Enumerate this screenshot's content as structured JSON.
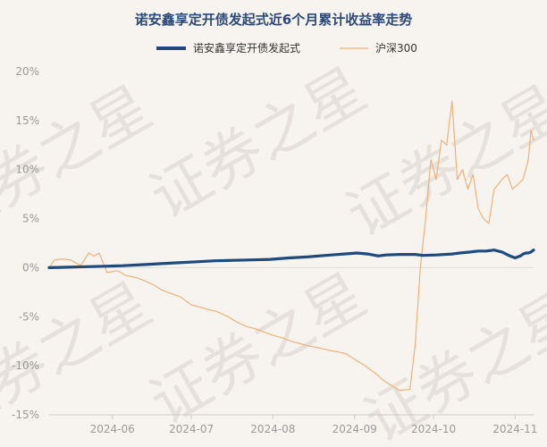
{
  "chart_data": {
    "type": "line",
    "title": "诺安鑫享定开债发起式近6个月累计收益率走势",
    "watermark": "证券之星",
    "ylim": [
      -15,
      20
    ],
    "yticks": [
      20,
      15,
      10,
      5,
      0,
      -5,
      -10,
      -15
    ],
    "ytick_labels": [
      "20%",
      "15%",
      "10%",
      "5%",
      "0%",
      "-5%",
      "-10%",
      "-15%"
    ],
    "xticks": [
      {
        "date": "2024-06-01",
        "label": "2024-06"
      },
      {
        "date": "2024-07-01",
        "label": "2024-07"
      },
      {
        "date": "2024-08-01",
        "label": "2024-08"
      },
      {
        "date": "2024-09-01",
        "label": "2024-09"
      },
      {
        "date": "2024-10-01",
        "label": "2024-10"
      },
      {
        "date": "2024-11-01",
        "label": "2024-11"
      }
    ],
    "xlim": [
      "2024-05-08",
      "2024-11-08"
    ],
    "legend_position": "top",
    "grid": false,
    "series": [
      {
        "name": "诺安鑫享定开债发起式",
        "color": "#1f4a7c",
        "points": [
          [
            "2024-05-08",
            0.0
          ],
          [
            "2024-05-15",
            0.05
          ],
          [
            "2024-05-22",
            0.1
          ],
          [
            "2024-05-29",
            0.15
          ],
          [
            "2024-06-05",
            0.2
          ],
          [
            "2024-06-12",
            0.3
          ],
          [
            "2024-06-19",
            0.4
          ],
          [
            "2024-06-26",
            0.5
          ],
          [
            "2024-07-03",
            0.6
          ],
          [
            "2024-07-10",
            0.7
          ],
          [
            "2024-07-17",
            0.75
          ],
          [
            "2024-07-24",
            0.8
          ],
          [
            "2024-07-31",
            0.85
          ],
          [
            "2024-08-07",
            1.0
          ],
          [
            "2024-08-14",
            1.1
          ],
          [
            "2024-08-21",
            1.25
          ],
          [
            "2024-08-28",
            1.4
          ],
          [
            "2024-09-02",
            1.5
          ],
          [
            "2024-09-06",
            1.4
          ],
          [
            "2024-09-10",
            1.2
          ],
          [
            "2024-09-13",
            1.3
          ],
          [
            "2024-09-18",
            1.35
          ],
          [
            "2024-09-24",
            1.35
          ],
          [
            "2024-09-27",
            1.25
          ],
          [
            "2024-10-02",
            1.3
          ],
          [
            "2024-10-08",
            1.4
          ],
          [
            "2024-10-11",
            1.5
          ],
          [
            "2024-10-15",
            1.6
          ],
          [
            "2024-10-18",
            1.7
          ],
          [
            "2024-10-21",
            1.7
          ],
          [
            "2024-10-24",
            1.8
          ],
          [
            "2024-10-27",
            1.6
          ],
          [
            "2024-10-30",
            1.2
          ],
          [
            "2024-11-01",
            1.0
          ],
          [
            "2024-11-03",
            1.2
          ],
          [
            "2024-11-04",
            1.4
          ],
          [
            "2024-11-05",
            1.5
          ],
          [
            "2024-11-06",
            1.5
          ],
          [
            "2024-11-07",
            1.6
          ],
          [
            "2024-11-08",
            1.8
          ]
        ]
      },
      {
        "name": "沪深300",
        "color": "#f0b27a",
        "points": [
          [
            "2024-05-08",
            0.0
          ],
          [
            "2024-05-10",
            0.8
          ],
          [
            "2024-05-13",
            0.9
          ],
          [
            "2024-05-16",
            0.8
          ],
          [
            "2024-05-20",
            0.2
          ],
          [
            "2024-05-23",
            1.5
          ],
          [
            "2024-05-25",
            1.2
          ],
          [
            "2024-05-27",
            1.5
          ],
          [
            "2024-05-30",
            -0.5
          ],
          [
            "2024-06-03",
            -0.3
          ],
          [
            "2024-06-06",
            -0.8
          ],
          [
            "2024-06-10",
            -1.0
          ],
          [
            "2024-06-13",
            -1.3
          ],
          [
            "2024-06-17",
            -1.8
          ],
          [
            "2024-06-20",
            -2.3
          ],
          [
            "2024-06-24",
            -2.7
          ],
          [
            "2024-06-27",
            -3.0
          ],
          [
            "2024-07-01",
            -3.8
          ],
          [
            "2024-07-04",
            -4.0
          ],
          [
            "2024-07-08",
            -4.3
          ],
          [
            "2024-07-11",
            -4.5
          ],
          [
            "2024-07-15",
            -5.0
          ],
          [
            "2024-07-18",
            -5.5
          ],
          [
            "2024-07-22",
            -6.0
          ],
          [
            "2024-07-25",
            -6.2
          ],
          [
            "2024-07-29",
            -6.6
          ],
          [
            "2024-08-01",
            -6.9
          ],
          [
            "2024-08-05",
            -7.2
          ],
          [
            "2024-08-08",
            -7.5
          ],
          [
            "2024-08-12",
            -7.8
          ],
          [
            "2024-08-15",
            -8.0
          ],
          [
            "2024-08-19",
            -8.2
          ],
          [
            "2024-08-22",
            -8.4
          ],
          [
            "2024-08-26",
            -8.6
          ],
          [
            "2024-08-29",
            -8.8
          ],
          [
            "2024-09-02",
            -9.5
          ],
          [
            "2024-09-05",
            -10.0
          ],
          [
            "2024-09-09",
            -10.8
          ],
          [
            "2024-09-12",
            -11.5
          ],
          [
            "2024-09-15",
            -12.0
          ],
          [
            "2024-09-18",
            -12.5
          ],
          [
            "2024-09-22",
            -12.4
          ],
          [
            "2024-09-24",
            -8.0
          ],
          [
            "2024-09-26",
            0.0
          ],
          [
            "2024-09-28",
            5.0
          ],
          [
            "2024-09-30",
            11.0
          ],
          [
            "2024-10-02",
            9.0
          ],
          [
            "2024-10-04",
            13.0
          ],
          [
            "2024-10-06",
            12.5
          ],
          [
            "2024-10-08",
            17.0
          ],
          [
            "2024-10-10",
            9.0
          ],
          [
            "2024-10-12",
            10.0
          ],
          [
            "2024-10-14",
            8.0
          ],
          [
            "2024-10-16",
            9.5
          ],
          [
            "2024-10-18",
            6.0
          ],
          [
            "2024-10-20",
            5.0
          ],
          [
            "2024-10-22",
            4.5
          ],
          [
            "2024-10-24",
            8.0
          ],
          [
            "2024-10-27",
            9.0
          ],
          [
            "2024-10-29",
            9.5
          ],
          [
            "2024-10-31",
            8.0
          ],
          [
            "2024-11-02",
            8.5
          ],
          [
            "2024-11-04",
            9.0
          ],
          [
            "2024-11-06",
            11.0
          ],
          [
            "2024-11-07",
            14.0
          ],
          [
            "2024-11-08",
            13.0
          ]
        ]
      }
    ]
  }
}
